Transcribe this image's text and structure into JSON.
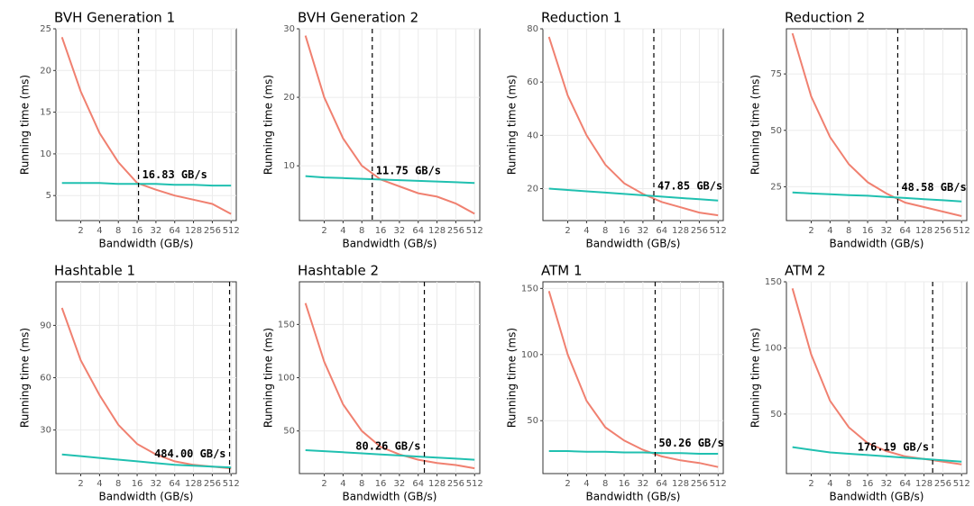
{
  "chart_data": [
    {
      "type": "line",
      "title": "BVH Generation 1",
      "xlabel": "Bandwidth (GB/s)",
      "ylabel": "Running time (ms)",
      "log_x": true,
      "grid": true,
      "x": [
        1,
        2,
        4,
        8,
        16,
        32,
        64,
        128,
        256,
        512
      ],
      "xlim": [
        0.8,
        620
      ],
      "xticks": [
        2,
        4,
        8,
        16,
        32,
        64,
        128,
        256,
        512
      ],
      "ylim": [
        2,
        25
      ],
      "yticks": [
        5,
        10,
        15,
        20,
        25
      ],
      "series": [
        {
          "color": "#f08070",
          "values": [
            24,
            17.5,
            12.5,
            9,
            6.5,
            5.7,
            5,
            4.5,
            4,
            2.8
          ]
        },
        {
          "color": "#20c0b0",
          "values": [
            6.5,
            6.5,
            6.5,
            6.4,
            6.4,
            6.4,
            6.3,
            6.3,
            6.2,
            6.2
          ]
        }
      ],
      "annotation": {
        "x": 16.83,
        "label": "16.83 GB/s"
      }
    },
    {
      "type": "line",
      "title": "BVH Generation 2",
      "xlabel": "Bandwidth (GB/s)",
      "ylabel": "Running time (ms)",
      "log_x": true,
      "grid": true,
      "x": [
        1,
        2,
        4,
        8,
        16,
        32,
        64,
        128,
        256,
        512
      ],
      "xlim": [
        0.8,
        620
      ],
      "xticks": [
        2,
        4,
        8,
        16,
        32,
        64,
        128,
        256,
        512
      ],
      "ylim": [
        2,
        30
      ],
      "yticks": [
        10,
        20,
        30
      ],
      "series": [
        {
          "color": "#f08070",
          "values": [
            29,
            20,
            14,
            10,
            8,
            7,
            6,
            5.5,
            4.5,
            3
          ]
        },
        {
          "color": "#20c0b0",
          "values": [
            8.5,
            8.3,
            8.2,
            8.1,
            8,
            7.9,
            7.8,
            7.7,
            7.6,
            7.5
          ]
        }
      ],
      "annotation": {
        "x": 11.75,
        "label": "11.75 GB/s"
      }
    },
    {
      "type": "line",
      "title": "Reduction 1",
      "xlabel": "Bandwidth (GB/s)",
      "ylabel": "Running time (ms)",
      "log_x": true,
      "grid": true,
      "x": [
        1,
        2,
        4,
        8,
        16,
        32,
        64,
        128,
        256,
        512
      ],
      "xlim": [
        0.8,
        620
      ],
      "xticks": [
        2,
        4,
        8,
        16,
        32,
        64,
        128,
        256,
        512
      ],
      "ylim": [
        8,
        80
      ],
      "yticks": [
        20,
        40,
        60,
        80
      ],
      "series": [
        {
          "color": "#f08070",
          "values": [
            77,
            55,
            40,
            29,
            22,
            18,
            15,
            13,
            11,
            10
          ]
        },
        {
          "color": "#20c0b0",
          "values": [
            20,
            19.5,
            19,
            18.5,
            18,
            17.5,
            17,
            16.5,
            16,
            15.5
          ]
        }
      ],
      "annotation": {
        "x": 47.85,
        "label": "47.85 GB/s"
      }
    },
    {
      "type": "line",
      "title": "Reduction 2",
      "xlabel": "Bandwidth (GB/s)",
      "ylabel": "Running time (ms)",
      "log_x": true,
      "grid": true,
      "x": [
        1,
        2,
        4,
        8,
        16,
        32,
        64,
        128,
        256,
        512
      ],
      "xlim": [
        0.8,
        620
      ],
      "xticks": [
        2,
        4,
        8,
        16,
        32,
        64,
        128,
        256,
        512
      ],
      "ylim": [
        10,
        95
      ],
      "yticks": [
        25,
        50,
        75
      ],
      "series": [
        {
          "color": "#f08070",
          "values": [
            93,
            65,
            47,
            35,
            27,
            22,
            18,
            16,
            14,
            12
          ]
        },
        {
          "color": "#20c0b0",
          "values": [
            22.5,
            22,
            21.7,
            21.3,
            21,
            20.5,
            20,
            19.5,
            19,
            18.5
          ]
        }
      ],
      "annotation": {
        "x": 48.58,
        "label": "48.58 GB/s"
      }
    },
    {
      "type": "line",
      "title": "Hashtable 1",
      "xlabel": "Bandwidth (GB/s)",
      "ylabel": "Running time (ms)",
      "log_x": true,
      "grid": true,
      "x": [
        1,
        2,
        4,
        8,
        16,
        32,
        64,
        128,
        256,
        512
      ],
      "xlim": [
        0.8,
        620
      ],
      "xticks": [
        2,
        4,
        8,
        16,
        32,
        64,
        128,
        256,
        512
      ],
      "ylim": [
        5,
        115
      ],
      "yticks": [
        30,
        60,
        90
      ],
      "series": [
        {
          "color": "#f08070",
          "values": [
            100,
            70,
            50,
            33,
            22,
            16,
            12,
            10,
            9,
            8
          ]
        },
        {
          "color": "#20c0b0",
          "values": [
            16,
            15,
            14,
            13,
            12,
            11,
            10,
            9.5,
            9,
            8.5
          ]
        }
      ],
      "annotation": {
        "x": 484,
        "label": "484.00 GB/s"
      }
    },
    {
      "type": "line",
      "title": "Hashtable 2",
      "xlabel": "Bandwidth (GB/s)",
      "ylabel": "Running time (ms)",
      "log_x": true,
      "grid": true,
      "x": [
        1,
        2,
        4,
        8,
        16,
        32,
        64,
        128,
        256,
        512
      ],
      "xlim": [
        0.8,
        620
      ],
      "xticks": [
        2,
        4,
        8,
        16,
        32,
        64,
        128,
        256,
        512
      ],
      "ylim": [
        10,
        190
      ],
      "yticks": [
        50,
        100,
        150
      ],
      "series": [
        {
          "color": "#f08070",
          "values": [
            170,
            115,
            75,
            50,
            35,
            28,
            23,
            20,
            18,
            15
          ]
        },
        {
          "color": "#20c0b0",
          "values": [
            32,
            31,
            30,
            29,
            28,
            27,
            26,
            25,
            24,
            23
          ]
        }
      ],
      "annotation": {
        "x": 80.26,
        "label": "80.26 GB/s"
      }
    },
    {
      "type": "line",
      "title": "ATM 1",
      "xlabel": "Bandwidth (GB/s)",
      "ylabel": "Running time (ms)",
      "log_x": true,
      "grid": true,
      "x": [
        1,
        2,
        4,
        8,
        16,
        32,
        64,
        128,
        256,
        512
      ],
      "xlim": [
        0.8,
        620
      ],
      "xticks": [
        2,
        4,
        8,
        16,
        32,
        64,
        128,
        256,
        512
      ],
      "ylim": [
        10,
        155
      ],
      "yticks": [
        50,
        100,
        150
      ],
      "series": [
        {
          "color": "#f08070",
          "values": [
            148,
            100,
            65,
            45,
            35,
            28,
            23,
            20,
            18,
            15
          ]
        },
        {
          "color": "#20c0b0",
          "values": [
            27,
            27,
            26.5,
            26.5,
            26,
            26,
            25.5,
            25.5,
            25,
            25
          ]
        }
      ],
      "annotation": {
        "x": 50.26,
        "label": "50.26 GB/s"
      }
    },
    {
      "type": "line",
      "title": "ATM 2",
      "xlabel": "Bandwidth (GB/s)",
      "ylabel": "Running time (ms)",
      "log_x": true,
      "grid": true,
      "x": [
        1,
        2,
        4,
        8,
        16,
        32,
        64,
        128,
        256,
        512
      ],
      "xlim": [
        0.8,
        620
      ],
      "xticks": [
        2,
        4,
        8,
        16,
        32,
        64,
        128,
        256,
        512
      ],
      "ylim": [
        5,
        150
      ],
      "yticks": [
        50,
        100,
        150
      ],
      "series": [
        {
          "color": "#f08070",
          "values": [
            145,
            95,
            60,
            40,
            28,
            22,
            18,
            16,
            14,
            12
          ]
        },
        {
          "color": "#20c0b0",
          "values": [
            25,
            23,
            21,
            20,
            19,
            18,
            17,
            16,
            15,
            14
          ]
        }
      ],
      "annotation": {
        "x": 176.19,
        "label": "176.19 GB/s"
      }
    }
  ]
}
